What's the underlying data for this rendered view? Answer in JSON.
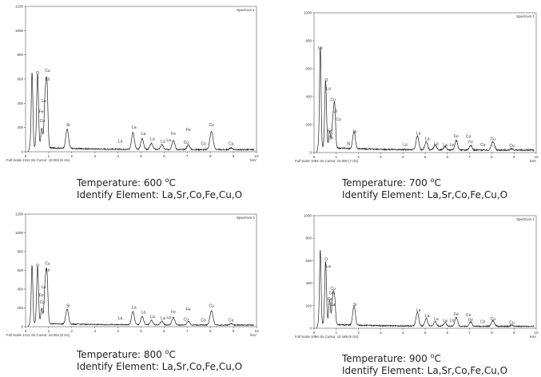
{
  "chart_data": [
    {
      "type": "line",
      "title": "Spectrum 1",
      "xlabel": "keV",
      "xlim": [
        0,
        10
      ],
      "ylim": [
        0,
        1200
      ],
      "yticks": [
        "0",
        "200",
        "400",
        "600",
        "800",
        "1000",
        "1200"
      ],
      "xticks": [
        "0",
        "1",
        "2",
        "3",
        "4",
        "5",
        "6",
        "7",
        "8",
        "9",
        "10"
      ],
      "footer": "Full Scale 1212 cts Cursor: 10.004 (6 cts)",
      "caption_temperature": "Temperature: 600",
      "caption_unit": "C",
      "caption_elements": "Identify Element: La,Sr,Co,Fe,Cu,O",
      "peaks": [
        {
          "x": 0.28,
          "y": 620,
          "w": 0.035
        },
        {
          "x": 0.52,
          "y": 610,
          "w": 0.04
        },
        {
          "x": 0.7,
          "y": 160,
          "w": 0.04
        },
        {
          "x": 0.85,
          "y": 420,
          "w": 0.045
        },
        {
          "x": 0.93,
          "y": 470,
          "w": 0.04
        },
        {
          "x": 1.8,
          "y": 160,
          "w": 0.06
        },
        {
          "x": 4.65,
          "y": 140,
          "w": 0.06
        },
        {
          "x": 5.05,
          "y": 90,
          "w": 0.06
        },
        {
          "x": 5.45,
          "y": 50,
          "w": 0.06
        },
        {
          "x": 5.9,
          "y": 40,
          "w": 0.06
        },
        {
          "x": 6.4,
          "y": 80,
          "w": 0.06
        },
        {
          "x": 7.05,
          "y": 40,
          "w": 0.06
        },
        {
          "x": 8.05,
          "y": 150,
          "w": 0.07
        },
        {
          "x": 8.9,
          "y": 15,
          "w": 0.06
        }
      ],
      "labels": [
        {
          "t": "O",
          "x": 0.52,
          "y": 640
        },
        {
          "t": "Cu",
          "x": 0.95,
          "y": 660
        },
        {
          "t": "La",
          "x": 0.95,
          "y": 590
        },
        {
          "t": "La",
          "x": 0.78,
          "y": 410
        },
        {
          "t": "Fe",
          "x": 0.68,
          "y": 320
        },
        {
          "t": "Co",
          "x": 0.72,
          "y": 245
        },
        {
          "t": "Sr",
          "x": 1.85,
          "y": 210
        },
        {
          "t": "La",
          "x": 4.7,
          "y": 190
        },
        {
          "t": "La",
          "x": 4.1,
          "y": 75
        },
        {
          "t": "La",
          "x": 5.1,
          "y": 140
        },
        {
          "t": "La",
          "x": 5.5,
          "y": 95
        },
        {
          "t": "La",
          "x": 5.95,
          "y": 75
        },
        {
          "t": "La",
          "x": 6.2,
          "y": 85
        },
        {
          "t": "Fe",
          "x": 6.4,
          "y": 140
        },
        {
          "t": "Fe",
          "x": 7.05,
          "y": 170
        },
        {
          "t": "Co",
          "x": 6.95,
          "y": 65
        },
        {
          "t": "Co",
          "x": 7.7,
          "y": 55
        },
        {
          "t": "Cu",
          "x": 8.05,
          "y": 210
        },
        {
          "t": "Cu",
          "x": 8.9,
          "y": 55
        }
      ]
    },
    {
      "type": "line",
      "title": "Spectrum 1",
      "xlabel": "keV",
      "xlim": [
        0,
        10
      ],
      "ylim": [
        0,
        1000
      ],
      "yticks": [
        "0",
        "200",
        "400",
        "600",
        "800",
        "1000"
      ],
      "xticks": [
        "0",
        "1",
        "2",
        "3",
        "4",
        "5",
        "6",
        "7",
        "8",
        "9",
        "10"
      ],
      "footer": "Full Scale 1082 cts Cursor: 10.000 (7 cts)",
      "caption_temperature": "Temperature: 700",
      "caption_unit": "C",
      "caption_elements": "Identify Element: La,Sr,Co,Fe,Cu,O",
      "peaks": [
        {
          "x": 0.28,
          "y": 720,
          "w": 0.035
        },
        {
          "x": 0.52,
          "y": 480,
          "w": 0.04
        },
        {
          "x": 0.7,
          "y": 120,
          "w": 0.04
        },
        {
          "x": 0.85,
          "y": 200,
          "w": 0.045
        },
        {
          "x": 0.93,
          "y": 280,
          "w": 0.04
        },
        {
          "x": 1.8,
          "y": 120,
          "w": 0.06
        },
        {
          "x": 4.65,
          "y": 100,
          "w": 0.06
        },
        {
          "x": 5.05,
          "y": 60,
          "w": 0.06
        },
        {
          "x": 5.45,
          "y": 35,
          "w": 0.06
        },
        {
          "x": 5.9,
          "y": 25,
          "w": 0.06
        },
        {
          "x": 6.4,
          "y": 70,
          "w": 0.06
        },
        {
          "x": 7.05,
          "y": 35,
          "w": 0.06
        },
        {
          "x": 8.05,
          "y": 60,
          "w": 0.07
        },
        {
          "x": 8.9,
          "y": 10,
          "w": 0.06
        }
      ],
      "labels": [
        {
          "t": "La",
          "x": 0.28,
          "y": 740
        },
        {
          "t": "O",
          "x": 0.55,
          "y": 510
        },
        {
          "t": "La",
          "x": 0.65,
          "y": 450
        },
        {
          "t": "Cu",
          "x": 0.85,
          "y": 370
        },
        {
          "t": "La",
          "x": 0.95,
          "y": 290
        },
        {
          "t": "Cu",
          "x": 1.1,
          "y": 230
        },
        {
          "t": "Fe",
          "x": 0.72,
          "y": 145
        },
        {
          "t": "Co",
          "x": 0.75,
          "y": 95
        },
        {
          "t": "Sr",
          "x": 1.85,
          "y": 140
        },
        {
          "t": "Sr",
          "x": 1.55,
          "y": 55
        },
        {
          "t": "La",
          "x": 4.7,
          "y": 130
        },
        {
          "t": "La",
          "x": 4.1,
          "y": 50
        },
        {
          "t": "La",
          "x": 5.1,
          "y": 90
        },
        {
          "t": "La",
          "x": 5.5,
          "y": 55
        },
        {
          "t": "La",
          "x": 5.9,
          "y": 45
        },
        {
          "t": "Le",
          "x": 6.2,
          "y": 45
        },
        {
          "t": "Fe",
          "x": 6.4,
          "y": 105
        },
        {
          "t": "Co",
          "x": 6.95,
          "y": 105
        },
        {
          "t": "Fe",
          "x": 7.05,
          "y": 65
        },
        {
          "t": "Co",
          "x": 7.6,
          "y": 45
        },
        {
          "t": "Cu",
          "x": 8.05,
          "y": 90
        },
        {
          "t": "Cu",
          "x": 8.9,
          "y": 40
        }
      ]
    },
    {
      "type": "line",
      "title": "Spectrum 1",
      "xlabel": "keV",
      "xlim": [
        0,
        10
      ],
      "ylim": [
        0,
        1200
      ],
      "yticks": [
        "0",
        "200",
        "400",
        "600",
        "800",
        "1000",
        "1200"
      ],
      "xticks": [
        "0",
        "1",
        "2",
        "3",
        "4",
        "5",
        "6",
        "7",
        "8",
        "9",
        "10"
      ],
      "footer": "Full Scale 1212 cts Cursor: 10.064 (6 cts)",
      "caption_temperature": "Temperature: 800",
      "caption_unit": "C",
      "caption_elements": "Identify Element: La,Sr,Co,Fe,Cu,O",
      "peaks": [
        {
          "x": 0.28,
          "y": 620,
          "w": 0.035
        },
        {
          "x": 0.52,
          "y": 610,
          "w": 0.04
        },
        {
          "x": 0.7,
          "y": 160,
          "w": 0.04
        },
        {
          "x": 0.85,
          "y": 420,
          "w": 0.045
        },
        {
          "x": 0.93,
          "y": 470,
          "w": 0.04
        },
        {
          "x": 1.8,
          "y": 160,
          "w": 0.06
        },
        {
          "x": 4.65,
          "y": 140,
          "w": 0.06
        },
        {
          "x": 5.05,
          "y": 90,
          "w": 0.06
        },
        {
          "x": 5.45,
          "y": 50,
          "w": 0.06
        },
        {
          "x": 5.9,
          "y": 40,
          "w": 0.06
        },
        {
          "x": 6.4,
          "y": 80,
          "w": 0.06
        },
        {
          "x": 7.05,
          "y": 40,
          "w": 0.06
        },
        {
          "x": 8.05,
          "y": 150,
          "w": 0.07
        },
        {
          "x": 8.9,
          "y": 15,
          "w": 0.06
        }
      ],
      "labels": [
        {
          "t": "O",
          "x": 0.52,
          "y": 640
        },
        {
          "t": "Cu",
          "x": 0.95,
          "y": 660
        },
        {
          "t": "La",
          "x": 0.95,
          "y": 590
        },
        {
          "t": "La",
          "x": 0.78,
          "y": 410
        },
        {
          "t": "Fe",
          "x": 0.68,
          "y": 320
        },
        {
          "t": "Co",
          "x": 0.72,
          "y": 245
        },
        {
          "t": "Sr",
          "x": 1.85,
          "y": 210
        },
        {
          "t": "La",
          "x": 4.7,
          "y": 190
        },
        {
          "t": "La",
          "x": 4.1,
          "y": 75
        },
        {
          "t": "La",
          "x": 5.1,
          "y": 140
        },
        {
          "t": "La",
          "x": 5.5,
          "y": 95
        },
        {
          "t": "La",
          "x": 5.95,
          "y": 75
        },
        {
          "t": "La",
          "x": 6.2,
          "y": 85
        },
        {
          "t": "Fe",
          "x": 6.4,
          "y": 140
        },
        {
          "t": "Fe",
          "x": 7.05,
          "y": 170
        },
        {
          "t": "Co",
          "x": 6.95,
          "y": 65
        },
        {
          "t": "Co",
          "x": 7.7,
          "y": 55
        },
        {
          "t": "Cu",
          "x": 8.05,
          "y": 210
        },
        {
          "t": "Cu",
          "x": 8.9,
          "y": 55
        }
      ]
    },
    {
      "type": "line",
      "title": "Spectrum 1",
      "xlabel": "keV",
      "xlim": [
        0,
        10
      ],
      "ylim": [
        0,
        1000
      ],
      "yticks": [
        "0",
        "200",
        "400",
        "600",
        "800",
        "1000"
      ],
      "xticks": [
        "0",
        "1",
        "2",
        "3",
        "4",
        "5",
        "6",
        "7",
        "8",
        "9",
        "10"
      ],
      "footer": "Full Scale 1086 cts Cursor: 10.169 (6 cts)",
      "caption_temperature": "Temperature: 900",
      "caption_unit": "C",
      "caption_elements": "Identify Element: La,Sr,Co,Fe,Cu,O",
      "peaks": [
        {
          "x": 0.28,
          "y": 660,
          "w": 0.035
        },
        {
          "x": 0.52,
          "y": 560,
          "w": 0.04
        },
        {
          "x": 0.7,
          "y": 220,
          "w": 0.04
        },
        {
          "x": 0.85,
          "y": 260,
          "w": 0.045
        },
        {
          "x": 0.93,
          "y": 200,
          "w": 0.04
        },
        {
          "x": 1.8,
          "y": 170,
          "w": 0.06
        },
        {
          "x": 4.65,
          "y": 120,
          "w": 0.06
        },
        {
          "x": 5.05,
          "y": 70,
          "w": 0.06
        },
        {
          "x": 5.45,
          "y": 40,
          "w": 0.06
        },
        {
          "x": 5.9,
          "y": 30,
          "w": 0.06
        },
        {
          "x": 6.4,
          "y": 80,
          "w": 0.06
        },
        {
          "x": 7.05,
          "y": 40,
          "w": 0.06
        },
        {
          "x": 8.05,
          "y": 50,
          "w": 0.07
        },
        {
          "x": 8.9,
          "y": 10,
          "w": 0.06
        }
      ],
      "labels": [
        {
          "t": "O",
          "x": 0.55,
          "y": 600
        },
        {
          "t": "La",
          "x": 0.65,
          "y": 540
        },
        {
          "t": "Cu",
          "x": 0.85,
          "y": 340
        },
        {
          "t": "Co",
          "x": 0.78,
          "y": 300
        },
        {
          "t": "Fe",
          "x": 0.72,
          "y": 250
        },
        {
          "t": "La",
          "x": 0.85,
          "y": 200
        },
        {
          "t": "Sr",
          "x": 1.85,
          "y": 200
        },
        {
          "t": "La",
          "x": 4.7,
          "y": 150
        },
        {
          "t": "La",
          "x": 5.1,
          "y": 100
        },
        {
          "t": "La",
          "x": 5.5,
          "y": 70
        },
        {
          "t": "La",
          "x": 5.9,
          "y": 55
        },
        {
          "t": "La",
          "x": 6.2,
          "y": 60
        },
        {
          "t": "Fe",
          "x": 6.4,
          "y": 115
        },
        {
          "t": "Co",
          "x": 6.95,
          "y": 105
        },
        {
          "t": "Fe",
          "x": 7.05,
          "y": 65
        },
        {
          "t": "Co",
          "x": 7.6,
          "y": 45
        },
        {
          "t": "Cu",
          "x": 8.05,
          "y": 70
        },
        {
          "t": "Cu",
          "x": 8.9,
          "y": 40
        }
      ]
    }
  ]
}
